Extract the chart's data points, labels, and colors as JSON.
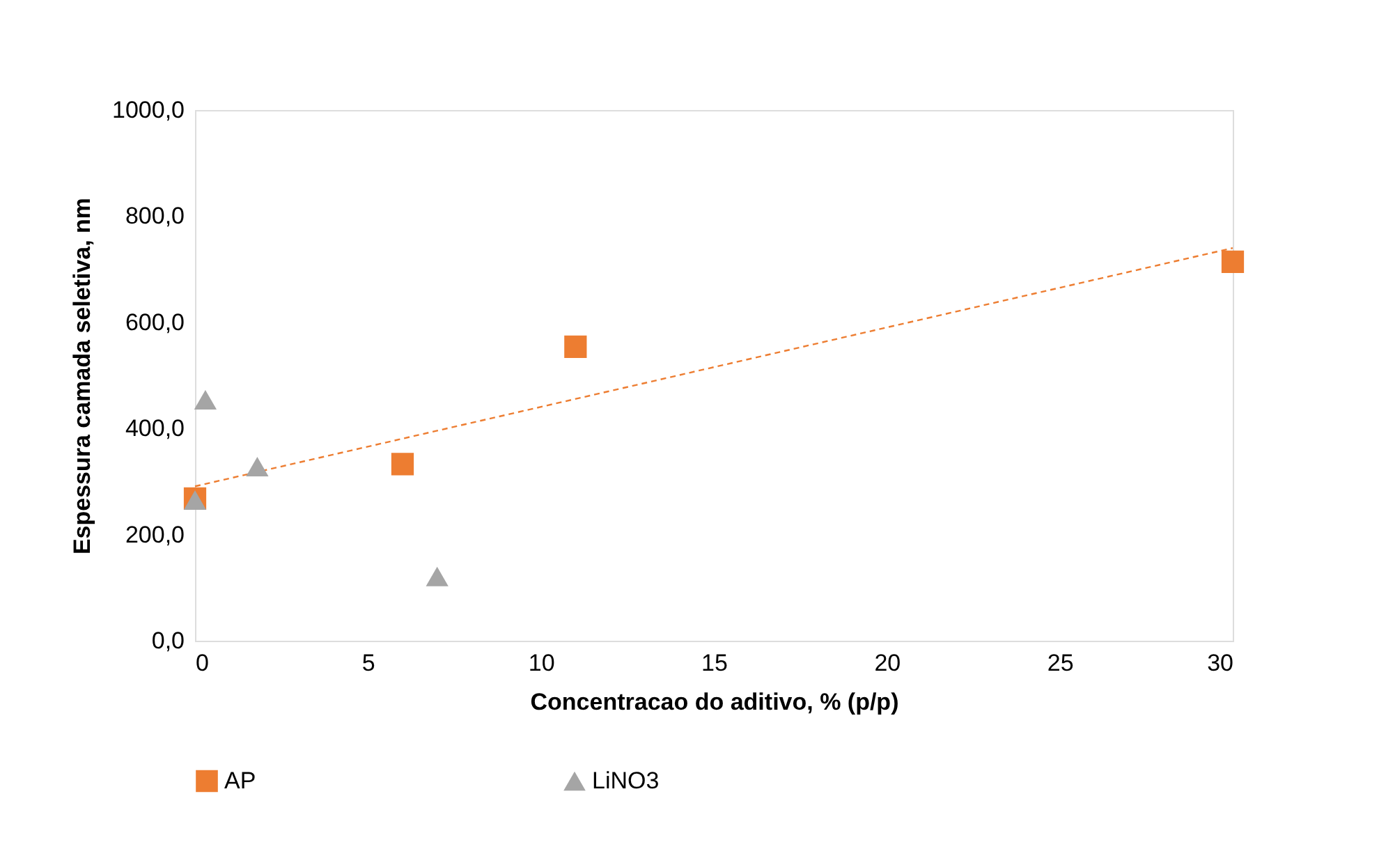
{
  "chart_data": {
    "type": "scatter",
    "xlabel": "Concentracao do aditivo, % (p/p)",
    "ylabel": "Espessura camada seletiva, nm",
    "xlim": [
      0,
      30
    ],
    "xticks": [
      0,
      5,
      10,
      15,
      20,
      25,
      30
    ],
    "ylim": [
      0,
      1000
    ],
    "yticks": [
      {
        "value": 0,
        "label": "0,0"
      },
      {
        "value": 200,
        "label": "200,0"
      },
      {
        "value": 400,
        "label": "400,0"
      },
      {
        "value": 600,
        "label": "600,0"
      },
      {
        "value": 800,
        "label": "800,0"
      },
      {
        "value": 1000,
        "label": "1000,0"
      }
    ],
    "grid": false,
    "legend": "bottom",
    "series": [
      {
        "name": "AP",
        "color": "#ed7d31",
        "marker": "square",
        "x": [
          0,
          6,
          11,
          30
        ],
        "values": [
          268,
          333,
          554,
          714
        ]
      },
      {
        "name": "LiNO3",
        "color": "#a5a5a5",
        "marker": "triangle",
        "x": [
          0,
          0.3,
          1.8,
          7
        ],
        "values": [
          265,
          454,
          328,
          121
        ]
      },
      {
        "type": "line",
        "color": "#ed7d31",
        "line_style": "dashed",
        "marker": "none",
        "x": [
          0,
          30
        ],
        "values": [
          291,
          740
        ]
      }
    ]
  }
}
